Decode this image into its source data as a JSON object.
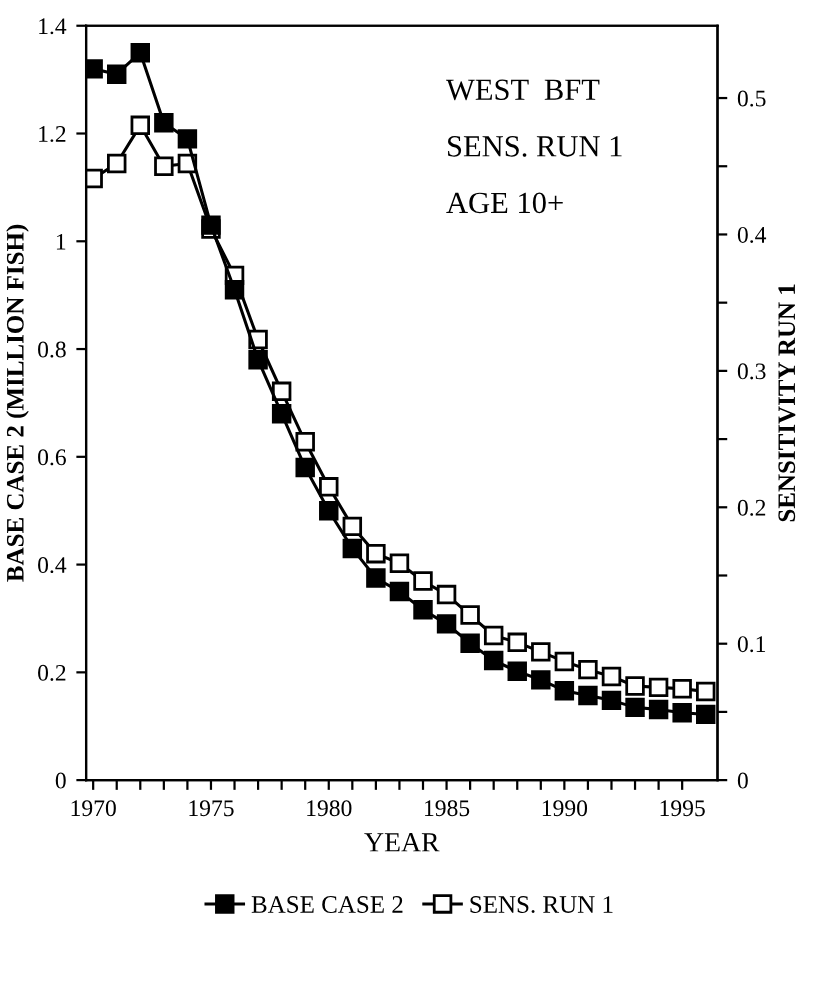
{
  "chart_data": {
    "type": "line",
    "xlabel": "YEAR",
    "ylabel": "BASE CASE 2 (MILLION FISH)",
    "y2label": "SENSITIVITY RUN 1",
    "annotations": [
      "WEST  BFT",
      "SENS. RUN 1",
      "AGE 10+"
    ],
    "x": [
      1970,
      1971,
      1972,
      1973,
      1974,
      1975,
      1976,
      1977,
      1978,
      1979,
      1980,
      1981,
      1982,
      1983,
      1984,
      1985,
      1986,
      1987,
      1988,
      1989,
      1990,
      1991,
      1992,
      1993,
      1994,
      1995,
      1996
    ],
    "series": [
      {
        "name": "BASE CASE 2",
        "color": "#000000",
        "marker": "square_filled",
        "values": [
          1.32,
          1.31,
          1.35,
          1.22,
          1.19,
          1.03,
          0.91,
          0.78,
          0.68,
          0.58,
          0.5,
          0.43,
          0.375,
          0.35,
          0.316,
          0.29,
          0.254,
          0.222,
          0.202,
          0.186,
          0.166,
          0.157,
          0.148,
          0.135,
          0.131,
          0.125,
          0.122
        ]
      },
      {
        "name": "SENS. RUN 1",
        "color": "#000000",
        "marker": "square",
        "axis": "y2",
        "values": [
          0.441,
          0.452,
          0.48,
          0.45,
          0.452,
          0.404,
          0.37,
          0.323,
          0.285,
          0.248,
          0.215,
          0.186,
          0.166,
          0.159,
          0.146,
          0.136,
          0.121,
          0.106,
          0.101,
          0.094,
          0.087,
          0.081,
          0.076,
          0.069,
          0.068,
          0.067,
          0.065
        ]
      }
    ],
    "xlim": [
      1969.7,
      1996.5
    ],
    "xticks": [
      1970,
      {
        "value": 1971,
        "label": null
      },
      {
        "value": 1972,
        "label": null
      },
      {
        "value": 1973,
        "label": null
      },
      {
        "value": 1974,
        "label": null
      },
      1975,
      {
        "value": 1976,
        "label": null
      },
      {
        "value": 1977,
        "label": null
      },
      {
        "value": 1978,
        "label": null
      },
      {
        "value": 1979,
        "label": null
      },
      1980,
      {
        "value": 1981,
        "label": null
      },
      {
        "value": 1982,
        "label": null
      },
      {
        "value": 1983,
        "label": null
      },
      {
        "value": 1984,
        "label": null
      },
      1985,
      {
        "value": 1986,
        "label": null
      },
      {
        "value": 1987,
        "label": null
      },
      {
        "value": 1988,
        "label": null
      },
      {
        "value": 1989,
        "label": null
      },
      1990,
      {
        "value": 1991,
        "label": null
      },
      {
        "value": 1992,
        "label": null
      },
      {
        "value": 1993,
        "label": null
      },
      {
        "value": 1994,
        "label": null
      },
      1995
    ],
    "ylim": [
      0,
      1.4
    ],
    "yticks": [
      0,
      0.2,
      0.4,
      0.6,
      0.8,
      1,
      1.2,
      1.4
    ],
    "y2lim": [
      0,
      0.553
    ],
    "y2ticks": [
      0,
      {
        "value": 0.05,
        "label": null
      },
      0.1,
      {
        "value": 0.15,
        "label": null
      },
      0.2,
      {
        "value": 0.25,
        "label": null
      },
      0.3,
      {
        "value": 0.35,
        "label": null
      },
      0.4,
      {
        "value": 0.45,
        "label": null
      },
      0.5
    ],
    "grid": false,
    "legend": "bottom",
    "line_style": "solid"
  }
}
